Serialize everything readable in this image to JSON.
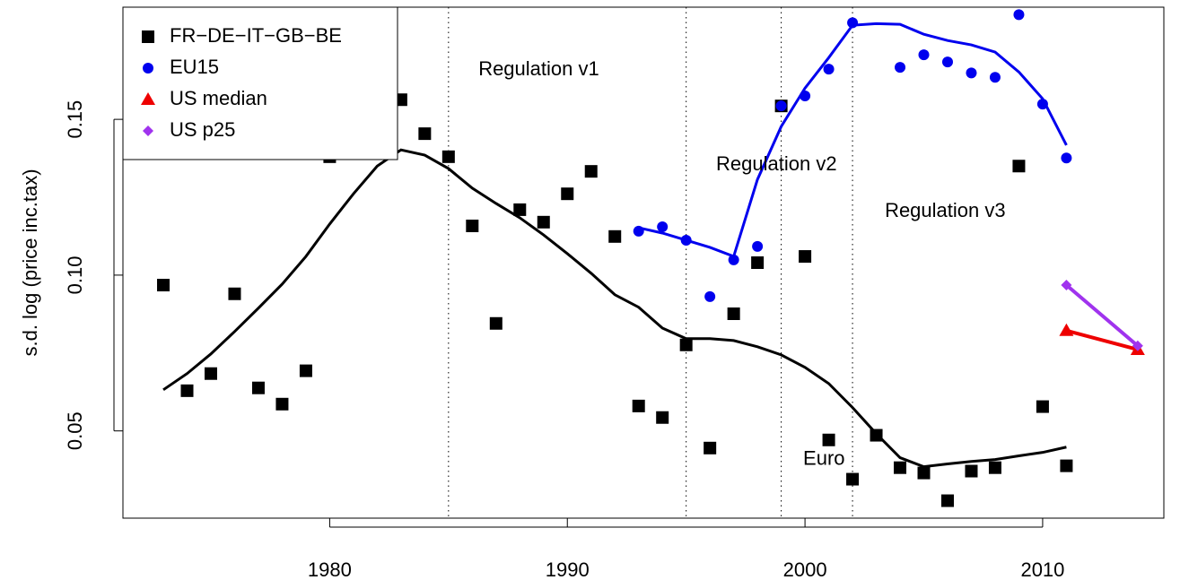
{
  "chart_data": {
    "type": "scatter",
    "ylabel": "s.d. log (price inc.tax)",
    "xlim": [
      1971.3,
      2015.1
    ],
    "ylim": [
      0.022,
      0.186
    ],
    "xticks": [
      1980,
      1990,
      2000,
      2010
    ],
    "yticks": [
      0.05,
      {
        "value": 0.1,
        "label": "0.10"
      },
      0.15
    ],
    "vlines": [
      1985,
      1995,
      1999,
      2002
    ],
    "legend": "top-left",
    "annotations": [
      {
        "text": "Regulation v1",
        "x": 1988.8,
        "y": 0.1658
      },
      {
        "text": "Regulation v2",
        "x": 1998.8,
        "y": 0.1353
      },
      {
        "text": "Regulation v3",
        "x": 2005.9,
        "y": 0.1204
      },
      {
        "text": "Euro",
        "x": 2000.8,
        "y": 0.0408
      }
    ],
    "series": [
      {
        "name": "FR−DE−IT−GB−BE",
        "color": "#000000",
        "marker": "square",
        "x": [
          1973,
          1974,
          1975,
          1976,
          1977,
          1978,
          1979,
          1980,
          1983,
          1984,
          1985,
          1986,
          1987,
          1988,
          1989,
          1990,
          1991,
          1992,
          1993,
          1994,
          1995,
          1996,
          1997,
          1998,
          1999,
          2000,
          2001,
          2002,
          2003,
          2004,
          2005,
          2006,
          2007,
          2008,
          2009,
          2010,
          2011
        ],
        "values": [
          0.0968,
          0.0629,
          0.0684,
          0.094,
          0.0638,
          0.0586,
          0.0693,
          0.138,
          0.1563,
          0.1454,
          0.138,
          0.1158,
          0.0845,
          0.121,
          0.117,
          0.1261,
          0.1333,
          0.1124,
          0.058,
          0.0543,
          0.0776,
          0.0445,
          0.0876,
          0.104,
          0.1543,
          0.106,
          0.0471,
          0.0345,
          0.0486,
          0.0382,
          0.0365,
          0.0276,
          0.0371,
          0.0382,
          0.135,
          0.0578,
          0.0388
        ],
        "trend": {
          "x": [
            1973,
            1974,
            1975,
            1976,
            1977,
            1978,
            1979,
            1980,
            1981,
            1982,
            1983,
            1984,
            1985,
            1986,
            1987,
            1988,
            1989,
            1990,
            1991,
            1992,
            1993,
            1994,
            1995,
            1996,
            1997,
            1998,
            1999,
            2000,
            2001,
            2002,
            2003,
            2004,
            2005,
            2006,
            2007,
            2008,
            2009,
            2010,
            2011
          ],
          "values": [
            0.0632,
            0.0684,
            0.0747,
            0.0819,
            0.0894,
            0.0971,
            0.106,
            0.1164,
            0.1261,
            0.135,
            0.1402,
            0.1385,
            0.1342,
            0.1279,
            0.123,
            0.1184,
            0.1129,
            0.1069,
            0.1006,
            0.0937,
            0.0897,
            0.083,
            0.0796,
            0.0796,
            0.079,
            0.077,
            0.0744,
            0.0704,
            0.0652,
            0.0575,
            0.0491,
            0.0414,
            0.0385,
            0.0394,
            0.0402,
            0.0408,
            0.042,
            0.0431,
            0.0448
          ]
        }
      },
      {
        "name": "EU15",
        "color": "#0000ee",
        "marker": "circle",
        "x": [
          1993,
          1994,
          1995,
          1996,
          1997,
          1998,
          1999,
          2000,
          2001,
          2002,
          2004,
          2005,
          2006,
          2007,
          2008,
          2009,
          2010,
          2011
        ],
        "values": [
          0.1141,
          0.1155,
          0.1112,
          0.0931,
          0.1049,
          0.1092,
          0.1543,
          0.1575,
          0.1661,
          0.181,
          0.1667,
          0.1707,
          0.1684,
          0.1649,
          0.1635,
          0.1836,
          0.1549,
          0.1376
        ],
        "trend": {
          "x": [
            1993,
            1994,
            1995,
            1996,
            1997,
            1998,
            1999,
            2000,
            2001,
            2002,
            2003,
            2004,
            2005,
            2006,
            2007,
            2008,
            2009,
            2010,
            2011
          ],
          "values": [
            0.1152,
            0.1135,
            0.1112,
            0.1089,
            0.106,
            0.1307,
            0.1477,
            0.16,
            0.1698,
            0.1802,
            0.1807,
            0.1805,
            0.1773,
            0.1753,
            0.1739,
            0.1716,
            0.1652,
            0.1566,
            0.1417
          ]
        }
      },
      {
        "name": "US median",
        "color": "#ee0000",
        "marker": "triangle",
        "line": true,
        "x": [
          2011,
          2014
        ],
        "values": [
          0.0822,
          0.0761
        ]
      },
      {
        "name": "US p25",
        "color": "#a033ee",
        "marker": "diamond",
        "line": true,
        "x": [
          2011,
          2014
        ],
        "values": [
          0.0968,
          0.0773
        ]
      }
    ]
  }
}
